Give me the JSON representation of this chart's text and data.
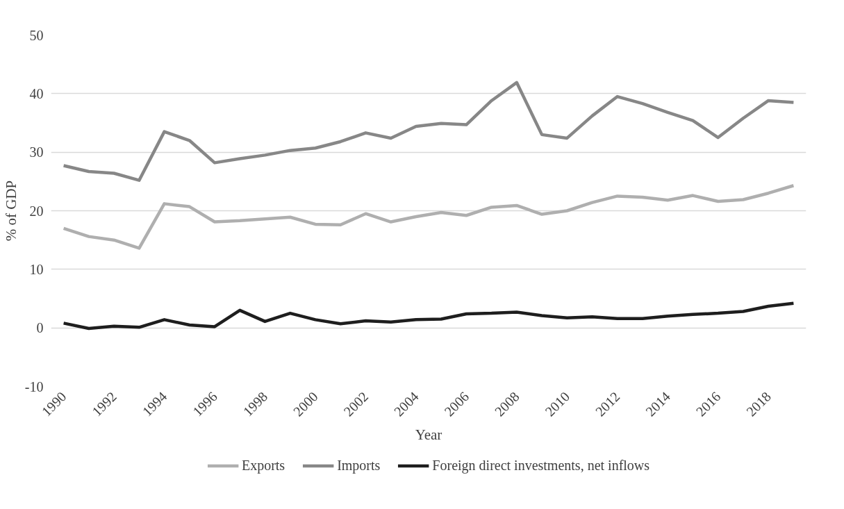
{
  "chart_data": {
    "type": "line",
    "xlabel": "Year",
    "ylabel": "% of GDP",
    "x": [
      1990,
      1991,
      1992,
      1993,
      1994,
      1995,
      1996,
      1997,
      1998,
      1999,
      2000,
      2001,
      2002,
      2003,
      2004,
      2005,
      2006,
      2007,
      2008,
      2009,
      2010,
      2011,
      2012,
      2013,
      2014,
      2015,
      2016,
      2017,
      2018,
      2019
    ],
    "xlim": [
      1989.5,
      2019.5
    ],
    "xticks": [
      1990,
      1992,
      1994,
      1996,
      1998,
      2000,
      2002,
      2004,
      2006,
      2008,
      2010,
      2012,
      2014,
      2016,
      2018
    ],
    "ylim": [
      -10,
      50
    ],
    "yticks": [
      -10,
      0,
      10,
      20,
      30,
      40,
      50
    ],
    "grid": "y",
    "legend": "bottom",
    "marker": "none",
    "line_style": "solid",
    "series": [
      {
        "name": "Exports",
        "color": "#afafaf",
        "values": [
          17.0,
          15.6,
          15.0,
          13.6,
          21.2,
          20.7,
          18.1,
          18.3,
          18.6,
          18.9,
          17.7,
          17.6,
          19.5,
          18.1,
          19.0,
          19.7,
          19.2,
          20.6,
          20.9,
          19.4,
          20.0,
          21.4,
          22.5,
          22.3,
          21.8,
          22.6,
          21.6,
          21.9,
          23.0,
          24.3
        ]
      },
      {
        "name": "Imports",
        "color": "#878787",
        "values": [
          27.7,
          26.7,
          26.4,
          25.2,
          33.5,
          32.0,
          28.2,
          28.9,
          29.5,
          30.3,
          30.7,
          31.8,
          33.3,
          32.4,
          34.4,
          34.9,
          34.7,
          38.8,
          41.9,
          33.0,
          32.4,
          36.2,
          39.5,
          38.3,
          36.8,
          35.4,
          32.5,
          35.8,
          38.8,
          38.5
        ]
      },
      {
        "name": "Foreign direct investments, net inflows",
        "color": "#1e1e1e",
        "values": [
          0.8,
          -0.1,
          0.3,
          0.1,
          1.4,
          0.5,
          0.2,
          3.0,
          1.1,
          2.5,
          1.4,
          0.7,
          1.2,
          1.0,
          1.4,
          1.5,
          2.4,
          2.5,
          2.7,
          2.1,
          1.7,
          1.9,
          1.6,
          1.6,
          2.0,
          2.3,
          2.5,
          2.8,
          3.7,
          4.2
        ]
      }
    ]
  }
}
